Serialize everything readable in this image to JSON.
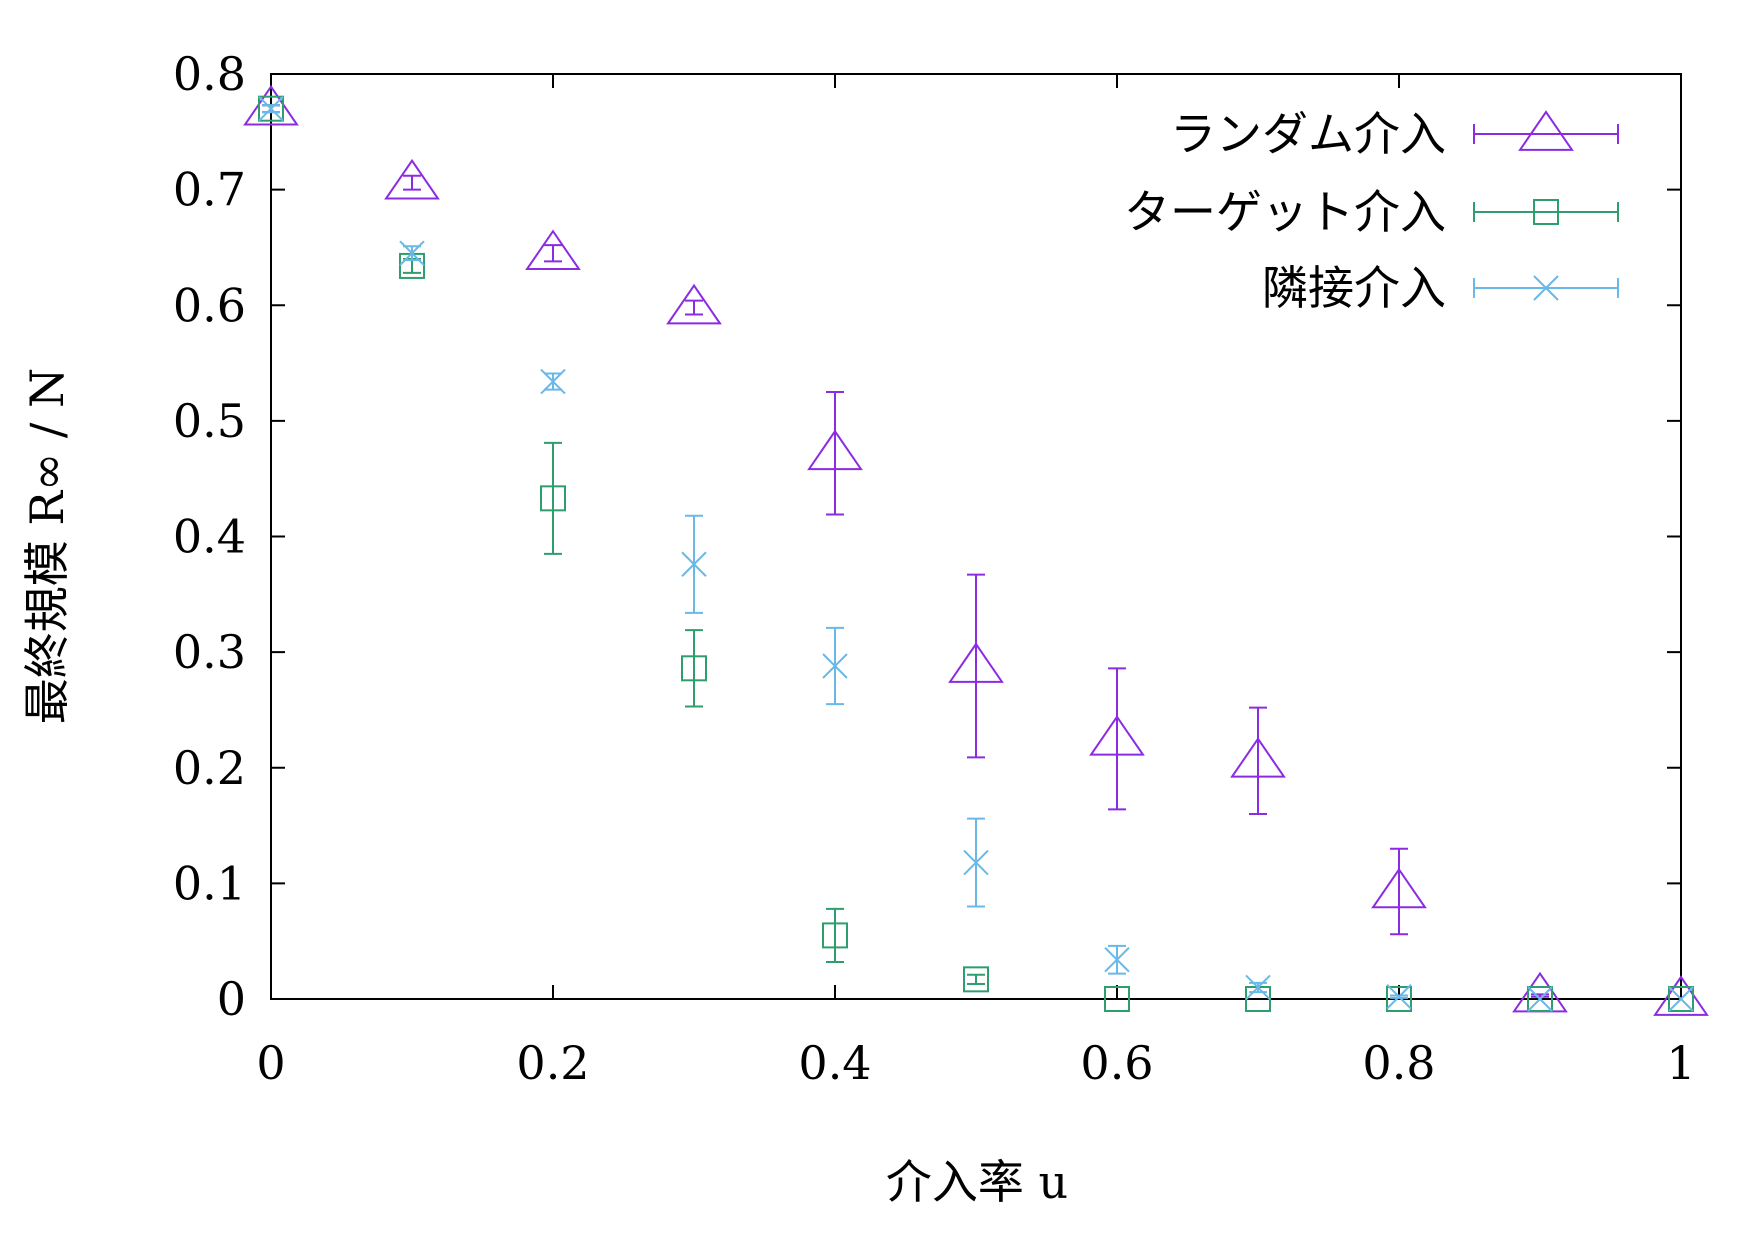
{
  "chart_data": {
    "type": "scatter",
    "xlabel": "介入率 u",
    "ylabel": "最終規模 R∞ / N",
    "xlim": [
      0,
      1
    ],
    "ylim": [
      0,
      0.8
    ],
    "x_ticks": [
      "0",
      "0.2",
      "0.4",
      "0.6",
      "0.8",
      "1"
    ],
    "y_ticks": [
      "0",
      "0.1",
      "0.2",
      "0.3",
      "0.4",
      "0.5",
      "0.6",
      "0.7",
      "0.8"
    ],
    "error_bars": true,
    "grid": false,
    "legend_position": "top-right",
    "series": [
      {
        "name": "ランダム介入",
        "marker": "triangle",
        "color": "#8b2be2",
        "x": [
          0,
          0.1,
          0.2,
          0.3,
          0.4,
          0.5,
          0.6,
          0.7,
          0.8,
          0.9,
          1.0
        ],
        "y": [
          0.77,
          0.706,
          0.645,
          0.598,
          0.472,
          0.288,
          0.225,
          0.206,
          0.093,
          0.003,
          0.0
        ],
        "err": [
          0.003,
          0.006,
          0.007,
          0.006,
          0.053,
          0.079,
          0.061,
          0.046,
          0.037,
          0.001,
          0.0
        ]
      },
      {
        "name": "ターゲット介入",
        "marker": "square",
        "color": "#2e9e6e",
        "x": [
          0,
          0.1,
          0.2,
          0.3,
          0.4,
          0.5,
          0.6,
          0.7,
          0.8,
          0.9,
          1.0
        ],
        "y": [
          0.77,
          0.634,
          0.433,
          0.286,
          0.055,
          0.017,
          0.0,
          0.0,
          0.0,
          0.0,
          0.0
        ],
        "err": [
          0.003,
          0.006,
          0.048,
          0.033,
          0.023,
          0.004,
          0.0,
          0.0,
          0.0,
          0.0,
          0.0
        ]
      },
      {
        "name": "隣接介入",
        "marker": "x",
        "color": "#6ab8e8",
        "x": [
          0,
          0.1,
          0.2,
          0.3,
          0.4,
          0.5,
          0.6,
          0.7,
          0.8,
          0.9,
          1.0
        ],
        "y": [
          0.77,
          0.645,
          0.534,
          0.376,
          0.288,
          0.118,
          0.034,
          0.01,
          0.002,
          0.0,
          0.0
        ],
        "err": [
          0.003,
          0.006,
          0.007,
          0.042,
          0.033,
          0.038,
          0.012,
          0.004,
          0.001,
          0.0,
          0.0
        ]
      }
    ]
  }
}
